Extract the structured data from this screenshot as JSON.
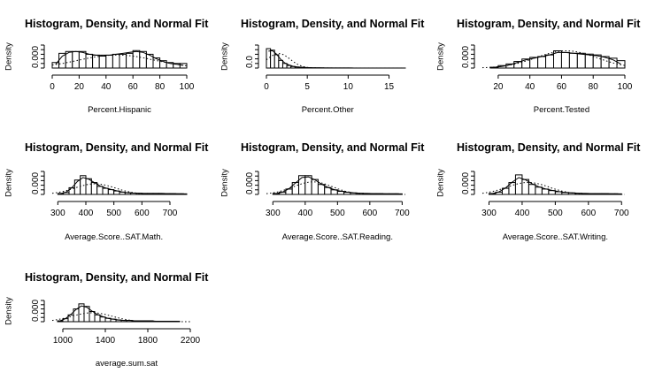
{
  "chart_data": [
    {
      "type": "bar",
      "title": "Histogram, Density, and Normal Fit",
      "xlabel": "Percent.Hispanic",
      "ylabel": "Density",
      "xlim": [
        0,
        100
      ],
      "xticks": [
        0,
        20,
        40,
        60,
        80,
        100
      ],
      "yticks": [
        "0.000"
      ],
      "bin_edges": [
        0,
        5,
        10,
        15,
        20,
        25,
        30,
        35,
        40,
        45,
        50,
        55,
        60,
        65,
        70,
        75,
        80,
        85,
        90,
        95,
        100
      ],
      "values": [
        0.006,
        0.016,
        0.018,
        0.018,
        0.018,
        0.015,
        0.014,
        0.013,
        0.014,
        0.015,
        0.015,
        0.016,
        0.019,
        0.018,
        0.015,
        0.011,
        0.008,
        0.006,
        0.005,
        0.005
      ],
      "density": [
        0.004,
        0.013,
        0.017,
        0.018,
        0.017,
        0.015,
        0.014,
        0.014,
        0.014,
        0.015,
        0.016,
        0.017,
        0.018,
        0.017,
        0.014,
        0.01,
        0.007,
        0.005,
        0.004,
        0.003
      ],
      "normal_fit": {
        "mean": 48,
        "sd": 28
      },
      "ylim": [
        0,
        0.025
      ]
    },
    {
      "type": "bar",
      "title": "Histogram, Density, and Normal Fit",
      "xlabel": "Percent.Other",
      "ylabel": "Density",
      "xlim": [
        0,
        17
      ],
      "xticks": [
        0,
        5,
        10,
        15
      ],
      "yticks": [
        "0.0"
      ],
      "bin_edges": [
        0,
        0.5,
        1,
        1.5,
        2,
        2.5,
        3,
        3.5,
        4,
        4.5,
        5,
        5.5,
        6,
        6.5,
        7,
        7.5,
        8,
        8.5,
        9,
        9.5,
        10,
        10.5,
        11,
        11.5,
        12,
        12.5,
        13,
        13.5,
        14,
        14.5,
        15,
        15.5,
        16,
        16.5,
        17
      ],
      "values": [
        0.38,
        0.35,
        0.26,
        0.15,
        0.09,
        0.05,
        0.03,
        0.02,
        0.015,
        0.01,
        0.008,
        0.005,
        0.004,
        0.003,
        0.002,
        0.002,
        0.001,
        0.001,
        0.001,
        0.001,
        0.001,
        0.0005,
        0.0005,
        0.0005,
        0.0005,
        0.0005,
        0.0005,
        0.0005,
        0.0005,
        0.0005,
        0.0005,
        0.0005,
        0.0005,
        0.0005
      ],
      "density": [
        0.33,
        0.34,
        0.27,
        0.17,
        0.1,
        0.06,
        0.035,
        0.022,
        0.015,
        0.01,
        0.007,
        0.005,
        0.004,
        0.003,
        0.002,
        0.002,
        0.001,
        0.001,
        0.001,
        0.001,
        0.001,
        0.0005,
        0.0005,
        0.0005,
        0.0005,
        0.0005,
        0.0005,
        0.0005,
        0.0005,
        0.0005,
        0.0005,
        0.0005,
        0.0005,
        0.0005
      ],
      "normal_fit": {
        "mean": 1.5,
        "sd": 1.4
      },
      "ylim": [
        0,
        0.45
      ]
    },
    {
      "type": "bar",
      "title": "Histogram, Density, and Normal Fit",
      "xlabel": "Percent.Tested",
      "ylabel": "Density",
      "xlim": [
        10,
        100
      ],
      "xticks": [
        20,
        40,
        60,
        80,
        100
      ],
      "yticks": [
        "0.000"
      ],
      "bin_edges": [
        15,
        20,
        25,
        30,
        35,
        40,
        45,
        50,
        55,
        60,
        65,
        70,
        75,
        80,
        85,
        90,
        95,
        100
      ],
      "values": [
        0.001,
        0.003,
        0.005,
        0.008,
        0.011,
        0.013,
        0.014,
        0.016,
        0.021,
        0.019,
        0.018,
        0.018,
        0.017,
        0.016,
        0.014,
        0.012,
        0.009
      ],
      "density": [
        0.001,
        0.002,
        0.004,
        0.007,
        0.01,
        0.012,
        0.014,
        0.016,
        0.019,
        0.019,
        0.018,
        0.017,
        0.016,
        0.015,
        0.013,
        0.01,
        0.005
      ],
      "normal_fit": {
        "mean": 63,
        "sd": 19
      },
      "ylim": [
        0,
        0.028
      ]
    },
    {
      "type": "bar",
      "title": "Histogram, Density, and Normal Fit",
      "xlabel": "Average.Score..SAT.Math.",
      "ylabel": "Density",
      "xlim": [
        280,
        760
      ],
      "xticks": [
        300,
        400,
        500,
        600,
        700
      ],
      "yticks": [
        "0.000"
      ],
      "bin_edges": [
        300,
        320,
        340,
        360,
        380,
        400,
        420,
        440,
        460,
        480,
        500,
        520,
        540,
        560,
        580,
        600,
        620,
        640,
        660,
        680,
        700,
        720,
        740,
        760
      ],
      "values": [
        0.0005,
        0.001,
        0.0035,
        0.0075,
        0.0098,
        0.0082,
        0.0062,
        0.0042,
        0.0032,
        0.0025,
        0.0018,
        0.0012,
        0.0009,
        0.0007,
        0.0006,
        0.0005,
        0.0005,
        0.0005,
        0.0005,
        0.0004,
        0.0004,
        0.0003,
        0.0003
      ],
      "density": [
        0.0004,
        0.0012,
        0.0035,
        0.0068,
        0.0088,
        0.008,
        0.0062,
        0.0045,
        0.0034,
        0.0026,
        0.0019,
        0.0013,
        0.0009,
        0.0007,
        0.0006,
        0.0005,
        0.0005,
        0.0005,
        0.0005,
        0.0004,
        0.0004,
        0.0003,
        0.0003
      ],
      "normal_fit": {
        "mean": 433,
        "sd": 72
      },
      "ylim": [
        0,
        0.012
      ]
    },
    {
      "type": "bar",
      "title": "Histogram, Density, and Normal Fit",
      "xlabel": "Average.Score..SAT.Reading.",
      "ylabel": "Density",
      "xlim": [
        280,
        710
      ],
      "xticks": [
        300,
        400,
        500,
        600,
        700
      ],
      "yticks": [
        "0.000"
      ],
      "bin_edges": [
        300,
        320,
        340,
        360,
        380,
        400,
        420,
        440,
        460,
        480,
        500,
        520,
        540,
        560,
        580,
        600,
        620,
        640,
        660,
        680,
        700
      ],
      "values": [
        0.0005,
        0.0012,
        0.0028,
        0.0062,
        0.0098,
        0.0098,
        0.0078,
        0.0052,
        0.0036,
        0.0024,
        0.0016,
        0.0011,
        0.0008,
        0.0006,
        0.0005,
        0.0004,
        0.0004,
        0.0003,
        0.0003,
        0.0003
      ],
      "density": [
        0.0004,
        0.0012,
        0.003,
        0.006,
        0.0088,
        0.0092,
        0.0076,
        0.0054,
        0.0037,
        0.0025,
        0.0017,
        0.0012,
        0.0008,
        0.0006,
        0.0005,
        0.0004,
        0.0004,
        0.0003,
        0.0003,
        0.0003
      ],
      "normal_fit": {
        "mean": 424,
        "sd": 61
      },
      "ylim": [
        0,
        0.012
      ]
    },
    {
      "type": "bar",
      "title": "Histogram, Density, and Normal Fit",
      "xlabel": "Average.Score..SAT.Writing.",
      "ylabel": "Density",
      "xlim": [
        280,
        710
      ],
      "xticks": [
        300,
        400,
        500,
        600,
        700
      ],
      "yticks": [
        "0.000"
      ],
      "bin_edges": [
        300,
        320,
        340,
        360,
        380,
        400,
        420,
        440,
        460,
        480,
        500,
        520,
        540,
        560,
        580,
        600,
        620,
        640,
        660,
        680,
        700
      ],
      "values": [
        0.0005,
        0.0012,
        0.0032,
        0.0062,
        0.0102,
        0.0078,
        0.0052,
        0.0038,
        0.0028,
        0.002,
        0.0014,
        0.001,
        0.0008,
        0.0006,
        0.0005,
        0.0004,
        0.0004,
        0.0004,
        0.0003,
        0.0003
      ],
      "density": [
        0.0004,
        0.0013,
        0.0034,
        0.0064,
        0.0088,
        0.0076,
        0.0056,
        0.004,
        0.0029,
        0.0021,
        0.0015,
        0.001,
        0.0008,
        0.0006,
        0.0005,
        0.0004,
        0.0004,
        0.0004,
        0.0003,
        0.0003
      ],
      "normal_fit": {
        "mean": 418,
        "sd": 64
      },
      "ylim": [
        0,
        0.012
      ]
    },
    {
      "type": "bar",
      "title": "Histogram, Density, and Normal Fit",
      "xlabel": "average.sum.sat",
      "ylabel": "Density",
      "xlim": [
        900,
        2200
      ],
      "xticks": [
        1000,
        1400,
        1800,
        2200
      ],
      "yticks": [
        "0.000"
      ],
      "bin_edges": [
        950,
        1000,
        1050,
        1100,
        1150,
        1200,
        1250,
        1300,
        1350,
        1400,
        1450,
        1500,
        1550,
        1600,
        1650,
        1700,
        1750,
        1800,
        1850,
        1900,
        1950,
        2000,
        2050,
        2100
      ],
      "values": [
        0.0002,
        0.0007,
        0.0016,
        0.003,
        0.0042,
        0.0036,
        0.0024,
        0.0016,
        0.0011,
        0.0008,
        0.0006,
        0.0004,
        0.0003,
        0.0003,
        0.0002,
        0.0002,
        0.0002,
        0.0002,
        0.0001,
        0.0001,
        0.0001,
        0.0001,
        0.0001
      ],
      "density": [
        0.0002,
        0.0007,
        0.0017,
        0.0029,
        0.0037,
        0.0034,
        0.0025,
        0.0017,
        0.0012,
        0.0008,
        0.0006,
        0.0004,
        0.0003,
        0.0003,
        0.0002,
        0.0002,
        0.0002,
        0.0002,
        0.0001,
        0.0001,
        0.0001,
        0.0001,
        0.0001
      ],
      "normal_fit": {
        "mean": 1275,
        "sd": 190
      },
      "ylim": [
        0,
        0.005
      ]
    }
  ]
}
